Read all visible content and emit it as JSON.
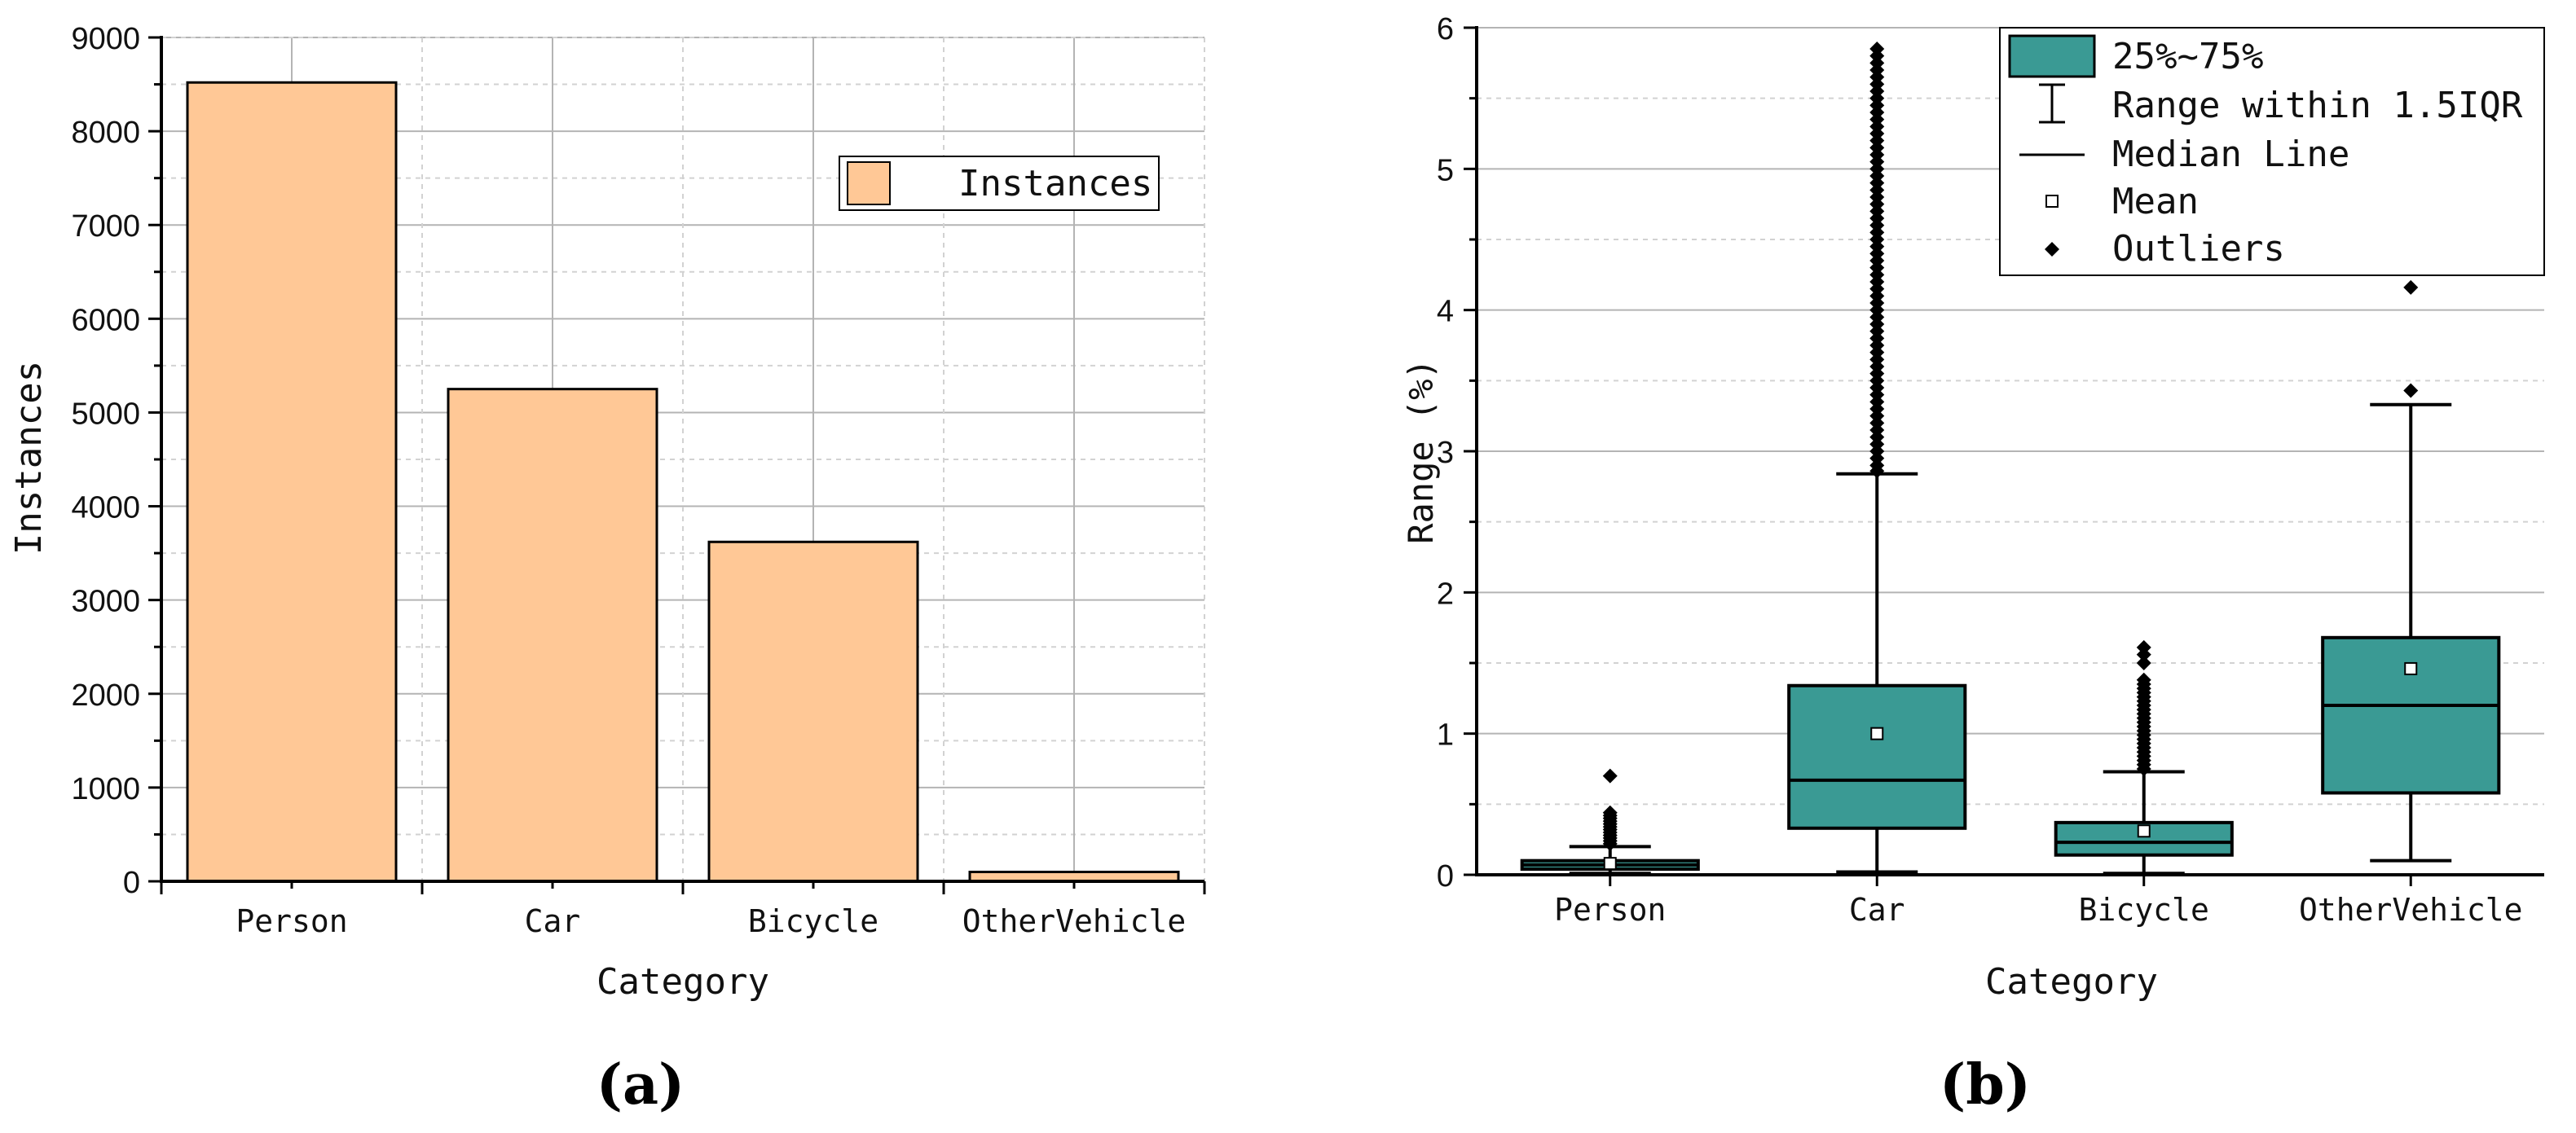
{
  "chart_data": [
    {
      "type": "bar",
      "panel_label": "(a)",
      "xlabel": "Category",
      "ylabel": "Instances",
      "categories": [
        "Person",
        "Car",
        "Bicycle",
        "OtherVehicle"
      ],
      "series": [
        {
          "name": "Instances",
          "values": [
            8520,
            5250,
            3620,
            100
          ]
        }
      ],
      "ylim": [
        0,
        9000
      ],
      "yticks": [
        0,
        1000,
        2000,
        3000,
        4000,
        5000,
        6000,
        7000,
        8000,
        9000
      ],
      "grid": true,
      "legend": "top-right",
      "colors": {
        "bar": "#FFC896",
        "edge": "#000000",
        "grid": "#b4b4b4"
      }
    },
    {
      "type": "box",
      "panel_label": "(b)",
      "xlabel": "Category",
      "ylabel": "Range (%)",
      "categories": [
        "Person",
        "Car",
        "Bicycle",
        "OtherVehicle"
      ],
      "ylim": [
        0,
        6
      ],
      "yticks": [
        0,
        1,
        2,
        3,
        4,
        5,
        6
      ],
      "grid": true,
      "legend": "top-right",
      "legend_items": [
        "25%~75%",
        "Range within 1.5IQR",
        "Median Line",
        "Mean",
        "Outliers"
      ],
      "boxes": [
        {
          "name": "Person",
          "whisker_low": 0.01,
          "q1": 0.04,
          "median": 0.07,
          "q3": 0.1,
          "whisker_high": 0.2,
          "mean": 0.08,
          "outliers": [
            0.22,
            0.24,
            0.26,
            0.28,
            0.3,
            0.32,
            0.34,
            0.36,
            0.38,
            0.4,
            0.42,
            0.44,
            0.7
          ]
        },
        {
          "name": "Car",
          "whisker_low": 0.02,
          "q1": 0.33,
          "median": 0.67,
          "q3": 1.34,
          "whisker_high": 2.84,
          "mean": 1.0,
          "outliers": [
            2.86,
            2.9,
            2.95,
            3.0,
            3.05,
            3.1,
            3.15,
            3.2,
            3.25,
            3.3,
            3.35,
            3.4,
            3.45,
            3.5,
            3.55,
            3.6,
            3.65,
            3.7,
            3.75,
            3.8,
            3.85,
            3.9,
            3.95,
            4.0,
            4.05,
            4.1,
            4.15,
            4.2,
            4.25,
            4.3,
            4.35,
            4.4,
            4.45,
            4.5,
            4.55,
            4.6,
            4.65,
            4.7,
            4.75,
            4.8,
            4.85,
            4.9,
            4.95,
            5.0,
            5.05,
            5.1,
            5.15,
            5.2,
            5.25,
            5.3,
            5.35,
            5.4,
            5.45,
            5.5,
            5.55,
            5.6,
            5.65,
            5.7,
            5.75,
            5.8,
            5.85
          ]
        },
        {
          "name": "Bicycle",
          "whisker_low": 0.01,
          "q1": 0.14,
          "median": 0.23,
          "q3": 0.37,
          "whisker_high": 0.73,
          "mean": 0.31,
          "outliers": [
            0.75,
            0.78,
            0.81,
            0.84,
            0.87,
            0.9,
            0.93,
            0.96,
            0.99,
            1.02,
            1.05,
            1.08,
            1.11,
            1.14,
            1.17,
            1.2,
            1.23,
            1.26,
            1.29,
            1.32,
            1.35,
            1.38,
            1.5,
            1.56,
            1.61
          ]
        },
        {
          "name": "OtherVehicle",
          "whisker_low": 0.1,
          "q1": 0.58,
          "median": 1.2,
          "q3": 1.68,
          "whisker_high": 3.33,
          "mean": 1.46,
          "outliers": [
            3.43,
            4.16
          ]
        }
      ],
      "colors": {
        "box": "#3A9A94",
        "edge": "#000000",
        "grid": "#b4b4b4"
      }
    }
  ]
}
